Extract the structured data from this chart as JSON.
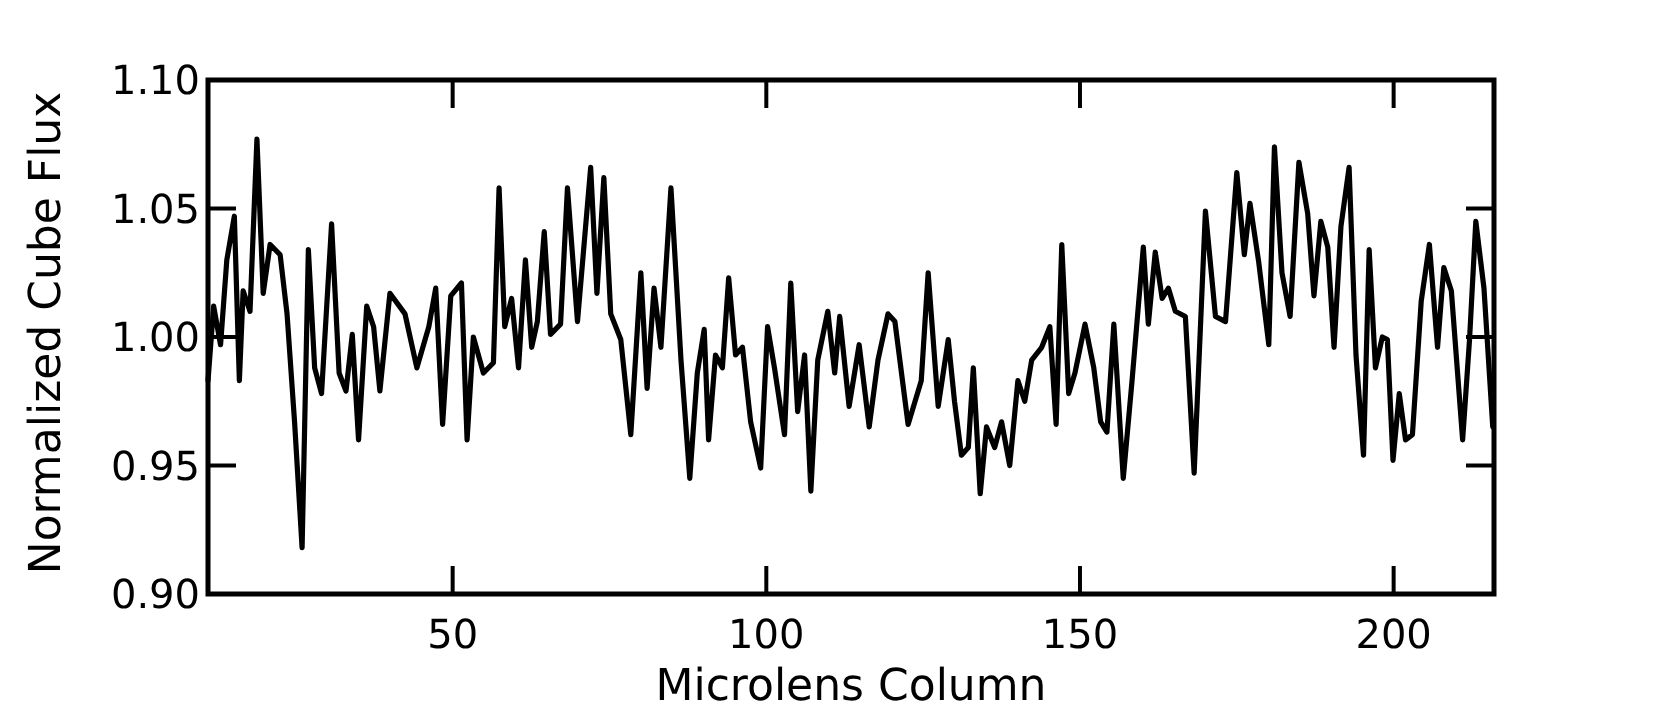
{
  "chart_data": {
    "type": "line",
    "xlabel": "Microlens Column",
    "ylabel": "Normalized Cube Flux",
    "xlim": [
      11,
      216
    ],
    "xticks": [
      50,
      100,
      150,
      200
    ],
    "ylim": [
      0.9,
      1.1
    ],
    "yticks": [
      {
        "value": 0.9,
        "label": "0.90"
      },
      {
        "value": 0.95,
        "label": "0.95"
      },
      {
        "value": 1.0,
        "label": "1.00"
      },
      {
        "value": 1.05,
        "label": "1.05"
      },
      {
        "value": 1.1,
        "label": "1.10"
      }
    ],
    "grid": false,
    "marker": "none",
    "line_style": "solid",
    "series": [
      {
        "color": "#000000",
        "x": [
          11,
          11.9,
          13,
          14,
          15.2,
          16,
          16.6,
          17.7,
          18.8,
          19.8,
          20.9,
          22.5,
          23.6,
          24.8,
          26,
          27,
          28,
          29.1,
          30.7,
          31.9,
          33,
          34,
          35,
          36.3,
          37.4,
          38.4,
          40,
          42.4,
          44.3,
          46.2,
          47.3,
          48.4,
          49.7,
          51.4,
          52.3,
          53.3,
          54.9,
          56.5,
          57.4,
          58.3,
          59.4,
          60.5,
          61.6,
          62.6,
          63.5,
          64.6,
          65.6,
          67.2,
          68.3,
          69.9,
          72,
          73,
          74.1,
          75.2,
          76.8,
          78.4,
          80,
          81,
          82.1,
          83.2,
          84.8,
          86.4,
          87.8,
          89,
          90.1,
          90.8,
          91.9,
          93,
          94,
          95.1,
          96.2,
          97.5,
          99.1,
          100.2,
          101.3,
          102.9,
          103.9,
          105,
          106.1,
          107.1,
          108.2,
          109.8,
          110.9,
          111.7,
          113.2,
          114.8,
          116.4,
          117.8,
          119.4,
          120.5,
          122.6,
          124.7,
          125.8,
          127.4,
          129,
          130,
          131.1,
          132.2,
          133,
          134.1,
          135.1,
          136.4,
          137.5,
          138.8,
          140.1,
          141.2,
          142.3,
          143.9,
          145.2,
          146.2,
          147.1,
          148.2,
          149.2,
          150.8,
          152.2,
          153.3,
          154.3,
          155.4,
          156.9,
          158.3,
          160.1,
          160.9,
          162,
          163.1,
          164.1,
          165.2,
          166.8,
          168.2,
          170,
          171.6,
          173.2,
          175,
          176.2,
          177.1,
          178.5,
          180.1,
          181,
          182.2,
          183.5,
          184.9,
          186.3,
          187.3,
          188.4,
          189.5,
          190.5,
          191.6,
          192.9,
          194,
          195.2,
          196.1,
          197.1,
          198.2,
          199,
          199.9,
          200.9,
          201.9,
          203,
          204.4,
          205.7,
          207,
          208,
          209.2,
          211,
          212.1,
          213.1,
          214.4,
          215.8
        ],
        "values": [
          0.983,
          1.012,
          0.997,
          1.03,
          1.047,
          0.983,
          1.018,
          1.01,
          1.077,
          1.017,
          1.036,
          1.032,
          1.009,
          0.967,
          0.918,
          1.034,
          0.988,
          0.978,
          1.044,
          0.986,
          0.979,
          1.001,
          0.96,
          1.012,
          1.004,
          0.979,
          1.017,
          1.009,
          0.988,
          1.004,
          1.019,
          0.966,
          1.016,
          1.021,
          0.96,
          1.0,
          0.986,
          0.99,
          1.058,
          1.004,
          1.015,
          0.988,
          1.03,
          0.996,
          1.006,
          1.041,
          1.001,
          1.005,
          1.058,
          1.006,
          1.066,
          1.017,
          1.062,
          1.009,
          0.999,
          0.962,
          1.025,
          0.98,
          1.019,
          0.996,
          1.058,
          0.991,
          0.945,
          0.986,
          1.003,
          0.96,
          0.993,
          0.988,
          1.023,
          0.993,
          0.996,
          0.967,
          0.949,
          1.004,
          0.988,
          0.962,
          1.021,
          0.971,
          0.993,
          0.94,
          0.991,
          1.01,
          0.986,
          1.008,
          0.973,
          0.997,
          0.965,
          0.991,
          1.009,
          1.006,
          0.966,
          0.983,
          1.025,
          0.973,
          0.999,
          0.975,
          0.954,
          0.957,
          0.988,
          0.939,
          0.965,
          0.957,
          0.967,
          0.95,
          0.983,
          0.975,
          0.991,
          0.996,
          1.004,
          0.966,
          1.036,
          0.978,
          0.986,
          1.005,
          0.988,
          0.967,
          0.963,
          1.005,
          0.945,
          0.983,
          1.035,
          1.005,
          1.033,
          1.015,
          1.019,
          1.01,
          1.008,
          0.947,
          1.049,
          1.008,
          1.006,
          1.064,
          1.032,
          1.052,
          1.029,
          0.997,
          1.074,
          1.025,
          1.008,
          1.068,
          1.048,
          1.016,
          1.045,
          1.035,
          0.996,
          1.043,
          1.066,
          0.993,
          0.954,
          1.034,
          0.988,
          1.0,
          0.999,
          0.952,
          0.978,
          0.96,
          0.962,
          1.014,
          1.036,
          0.996,
          1.027,
          1.018,
          0.96,
          0.999,
          1.045,
          1.019,
          0.965
        ]
      }
    ]
  }
}
